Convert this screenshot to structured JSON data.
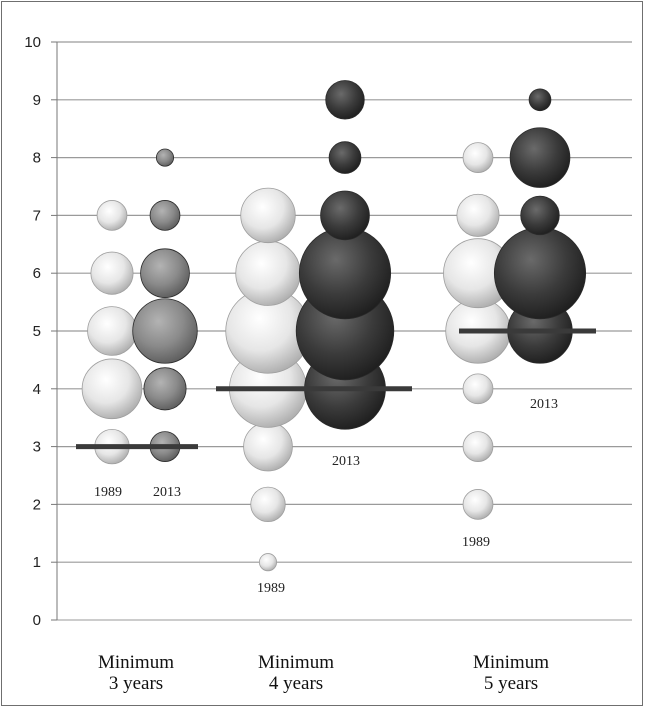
{
  "chart_data": {
    "type": "bubble",
    "ylim": [
      0,
      10
    ],
    "yticks": [
      0,
      1,
      2,
      3,
      4,
      5,
      6,
      7,
      8,
      9,
      10
    ],
    "grid": true,
    "categories": [
      {
        "line1": "Minimum",
        "line2": "3 years"
      },
      {
        "line1": "Minimum",
        "line2": "4 years"
      },
      {
        "line1": "Minimum",
        "line2": "5 years"
      }
    ],
    "series_colors": {
      "1989": "#e4e4e4",
      "2013_group1": "#8c8c8c",
      "2013_dark": "#3d3d3d"
    },
    "groups": [
      {
        "category": 0,
        "mean": 3,
        "series": [
          {
            "name": "1989",
            "points": [
              {
                "y": 3,
                "size": 2
              },
              {
                "y": 4,
                "size": 6
              },
              {
                "y": 5,
                "size": 4
              },
              {
                "y": 6,
                "size": 3
              },
              {
                "y": 7,
                "size": 1.5
              }
            ]
          },
          {
            "name": "2013",
            "points": [
              {
                "y": 3,
                "size": 1.5
              },
              {
                "y": 4,
                "size": 3
              },
              {
                "y": 5,
                "size": 7
              },
              {
                "y": 6,
                "size": 4
              },
              {
                "y": 7,
                "size": 1.5
              },
              {
                "y": 8,
                "size": 0.5
              }
            ]
          }
        ]
      },
      {
        "category": 1,
        "mean": 4,
        "series": [
          {
            "name": "1989",
            "points": [
              {
                "y": 1,
                "size": 0.5
              },
              {
                "y": 2,
                "size": 2
              },
              {
                "y": 3,
                "size": 4
              },
              {
                "y": 4,
                "size": 10
              },
              {
                "y": 5,
                "size": 12
              },
              {
                "y": 6,
                "size": 7
              },
              {
                "y": 7,
                "size": 5
              }
            ]
          },
          {
            "name": "2013",
            "points": [
              {
                "y": 4,
                "size": 11
              },
              {
                "y": 5,
                "size": 16
              },
              {
                "y": 6,
                "size": 14
              },
              {
                "y": 7,
                "size": 4
              },
              {
                "y": 8,
                "size": 1.7
              },
              {
                "y": 9,
                "size": 2.5
              }
            ]
          }
        ]
      },
      {
        "category": 2,
        "mean": 5,
        "series": [
          {
            "name": "1989",
            "points": [
              {
                "y": 2,
                "size": 1.5
              },
              {
                "y": 3,
                "size": 1.5
              },
              {
                "y": 4,
                "size": 1.5
              },
              {
                "y": 5,
                "size": 7
              },
              {
                "y": 6,
                "size": 8
              },
              {
                "y": 7,
                "size": 3
              },
              {
                "y": 8,
                "size": 1.5
              }
            ]
          },
          {
            "name": "2013",
            "points": [
              {
                "y": 5,
                "size": 7
              },
              {
                "y": 6,
                "size": 14
              },
              {
                "y": 7,
                "size": 2.5
              },
              {
                "y": 8,
                "size": 6
              },
              {
                "y": 9,
                "size": 0.8
              }
            ]
          }
        ]
      }
    ]
  }
}
